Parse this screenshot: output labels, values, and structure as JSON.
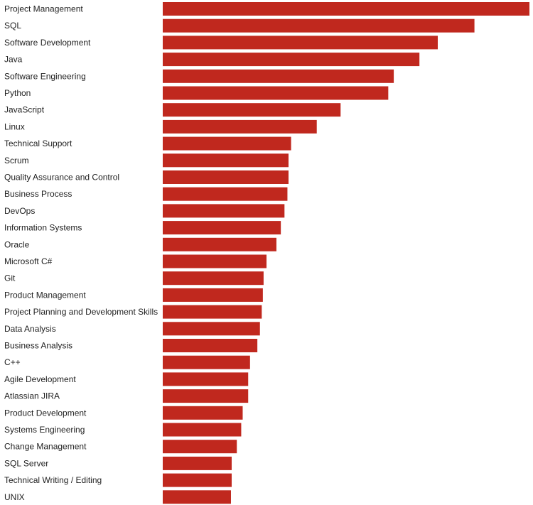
{
  "chart_data": {
    "type": "bar",
    "orientation": "horizontal",
    "title": "",
    "xlabel": "",
    "ylabel": "",
    "bar_color": "#c0281e",
    "grid": false,
    "legend": "none",
    "xlim": [
      0,
      100
    ],
    "categories": [
      "Project Management",
      "SQL",
      "Software Development",
      "Java",
      "Software Engineering",
      "Python",
      "JavaScript",
      "Linux",
      "Technical Support",
      "Scrum",
      "Quality Assurance and Control",
      "Business Process",
      "DevOps",
      "Information Systems",
      "Oracle",
      "Microsoft C#",
      "Git",
      "Product Management",
      "Project Planning and Development Skills",
      "Data Analysis",
      "Business Analysis",
      "C++",
      "Agile Development",
      "Atlassian JIRA",
      "Product Development",
      "Systems Engineering",
      "Change Management",
      "SQL Server",
      "Technical Writing / Editing",
      "UNIX"
    ],
    "values": [
      100,
      85,
      75,
      70,
      63,
      61.5,
      48.5,
      42,
      35,
      34.3,
      34.3,
      34,
      33.2,
      32.2,
      31,
      28.3,
      27.5,
      27.3,
      27,
      26.5,
      25.8,
      23.8,
      23.3,
      23.3,
      21.8,
      21.4,
      20.2,
      18.8,
      18.8,
      18.6
    ]
  }
}
